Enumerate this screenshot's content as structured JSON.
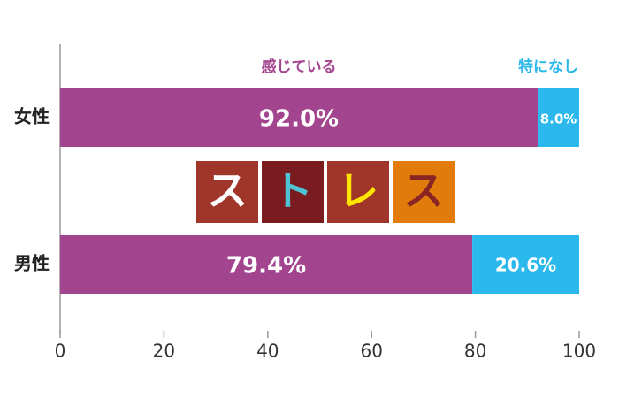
{
  "chart_data": {
    "type": "stacked-barh",
    "categories": [
      "女性",
      "男性"
    ],
    "series": [
      {
        "name": "感じている",
        "color": "#a3448f",
        "values": [
          92.0,
          79.4
        ],
        "value_labels": [
          "92.0%",
          "79.4%"
        ]
      },
      {
        "name": "特になし",
        "color": "#2bb8ec",
        "values": [
          8.0,
          20.6
        ],
        "value_labels": [
          "8.0%",
          "20.6%"
        ]
      }
    ],
    "xlim": [
      0,
      100
    ],
    "xticks": [
      0,
      20,
      40,
      60,
      80,
      100
    ],
    "grid": false,
    "annotation_tiles": [
      {
        "text": "ス",
        "background": "#a0352a",
        "color": "#ffffff"
      },
      {
        "text": "ト",
        "background": "#7a1c1f",
        "color": "#4ec3d6"
      },
      {
        "text": "レ",
        "background": "#a0352a",
        "color": "#ffe600"
      },
      {
        "text": "ス",
        "background": "#e07b0c",
        "color": "#8a2525"
      }
    ]
  }
}
